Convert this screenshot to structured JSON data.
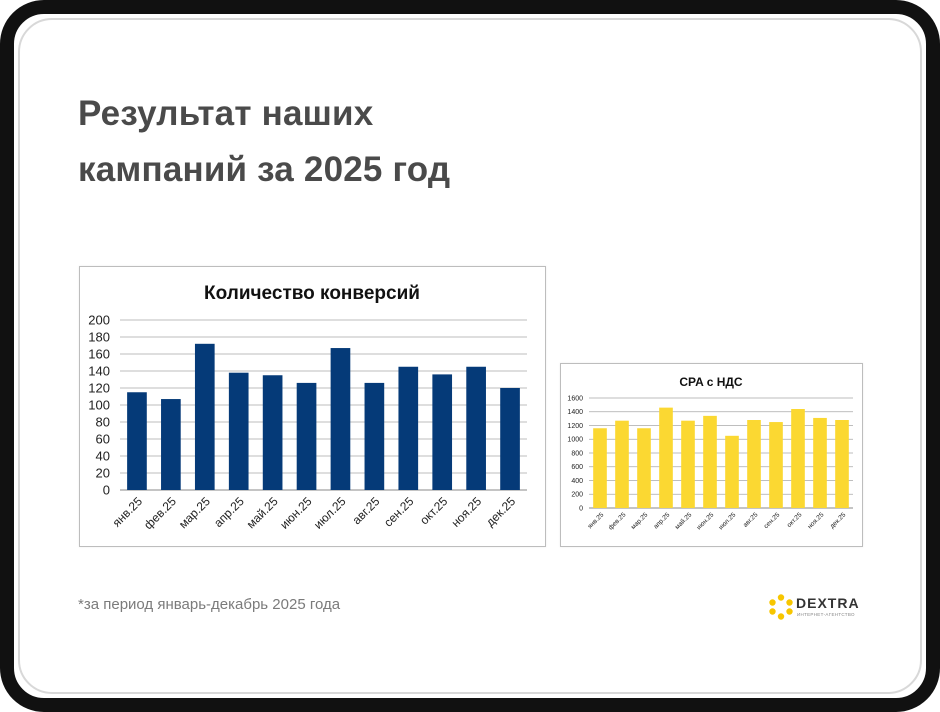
{
  "slide": {
    "title_line1": "Результат наших",
    "title_line2": "кампаний за 2025 год",
    "footnote": "*за период январь-декабрь 2025 года"
  },
  "logo": {
    "brand": "DEXTRA",
    "tagline": "ИНТЕРНЕТ-АГЕНТСТВО",
    "icon": "hexagon-dots-icon",
    "color": "#f7c600"
  },
  "chart_data": [
    {
      "type": "bar",
      "title": "Количество конверсий",
      "categories": [
        "янв.25",
        "фев.25",
        "мар.25",
        "апр.25",
        "май.25",
        "июн.25",
        "июл.25",
        "авг.25",
        "сен.25",
        "окт.25",
        "ноя.25",
        "дек.25"
      ],
      "values": [
        115,
        107,
        172,
        138,
        135,
        126,
        167,
        126,
        145,
        136,
        145,
        120
      ],
      "ylim": [
        0,
        200
      ],
      "yticks": [
        0,
        20,
        40,
        60,
        80,
        100,
        120,
        140,
        160,
        180,
        200
      ],
      "color": "#053a78",
      "grid": true,
      "legend": "none"
    },
    {
      "type": "bar",
      "title": "CPA с НДС",
      "categories": [
        "янв.25",
        "фев.25",
        "мар.25",
        "апр.25",
        "май.25",
        "июн.25",
        "июл.25",
        "авг.25",
        "сен.25",
        "окт.25",
        "ноя.25",
        "дек.25"
      ],
      "values": [
        1160,
        1270,
        1160,
        1460,
        1270,
        1340,
        1050,
        1280,
        1250,
        1440,
        1310,
        1280
      ],
      "ylim": [
        0,
        1600
      ],
      "yticks": [
        0,
        200,
        400,
        600,
        800,
        1000,
        1200,
        1400,
        1600
      ],
      "color": "#fbd832",
      "grid": true,
      "legend": "none"
    }
  ]
}
